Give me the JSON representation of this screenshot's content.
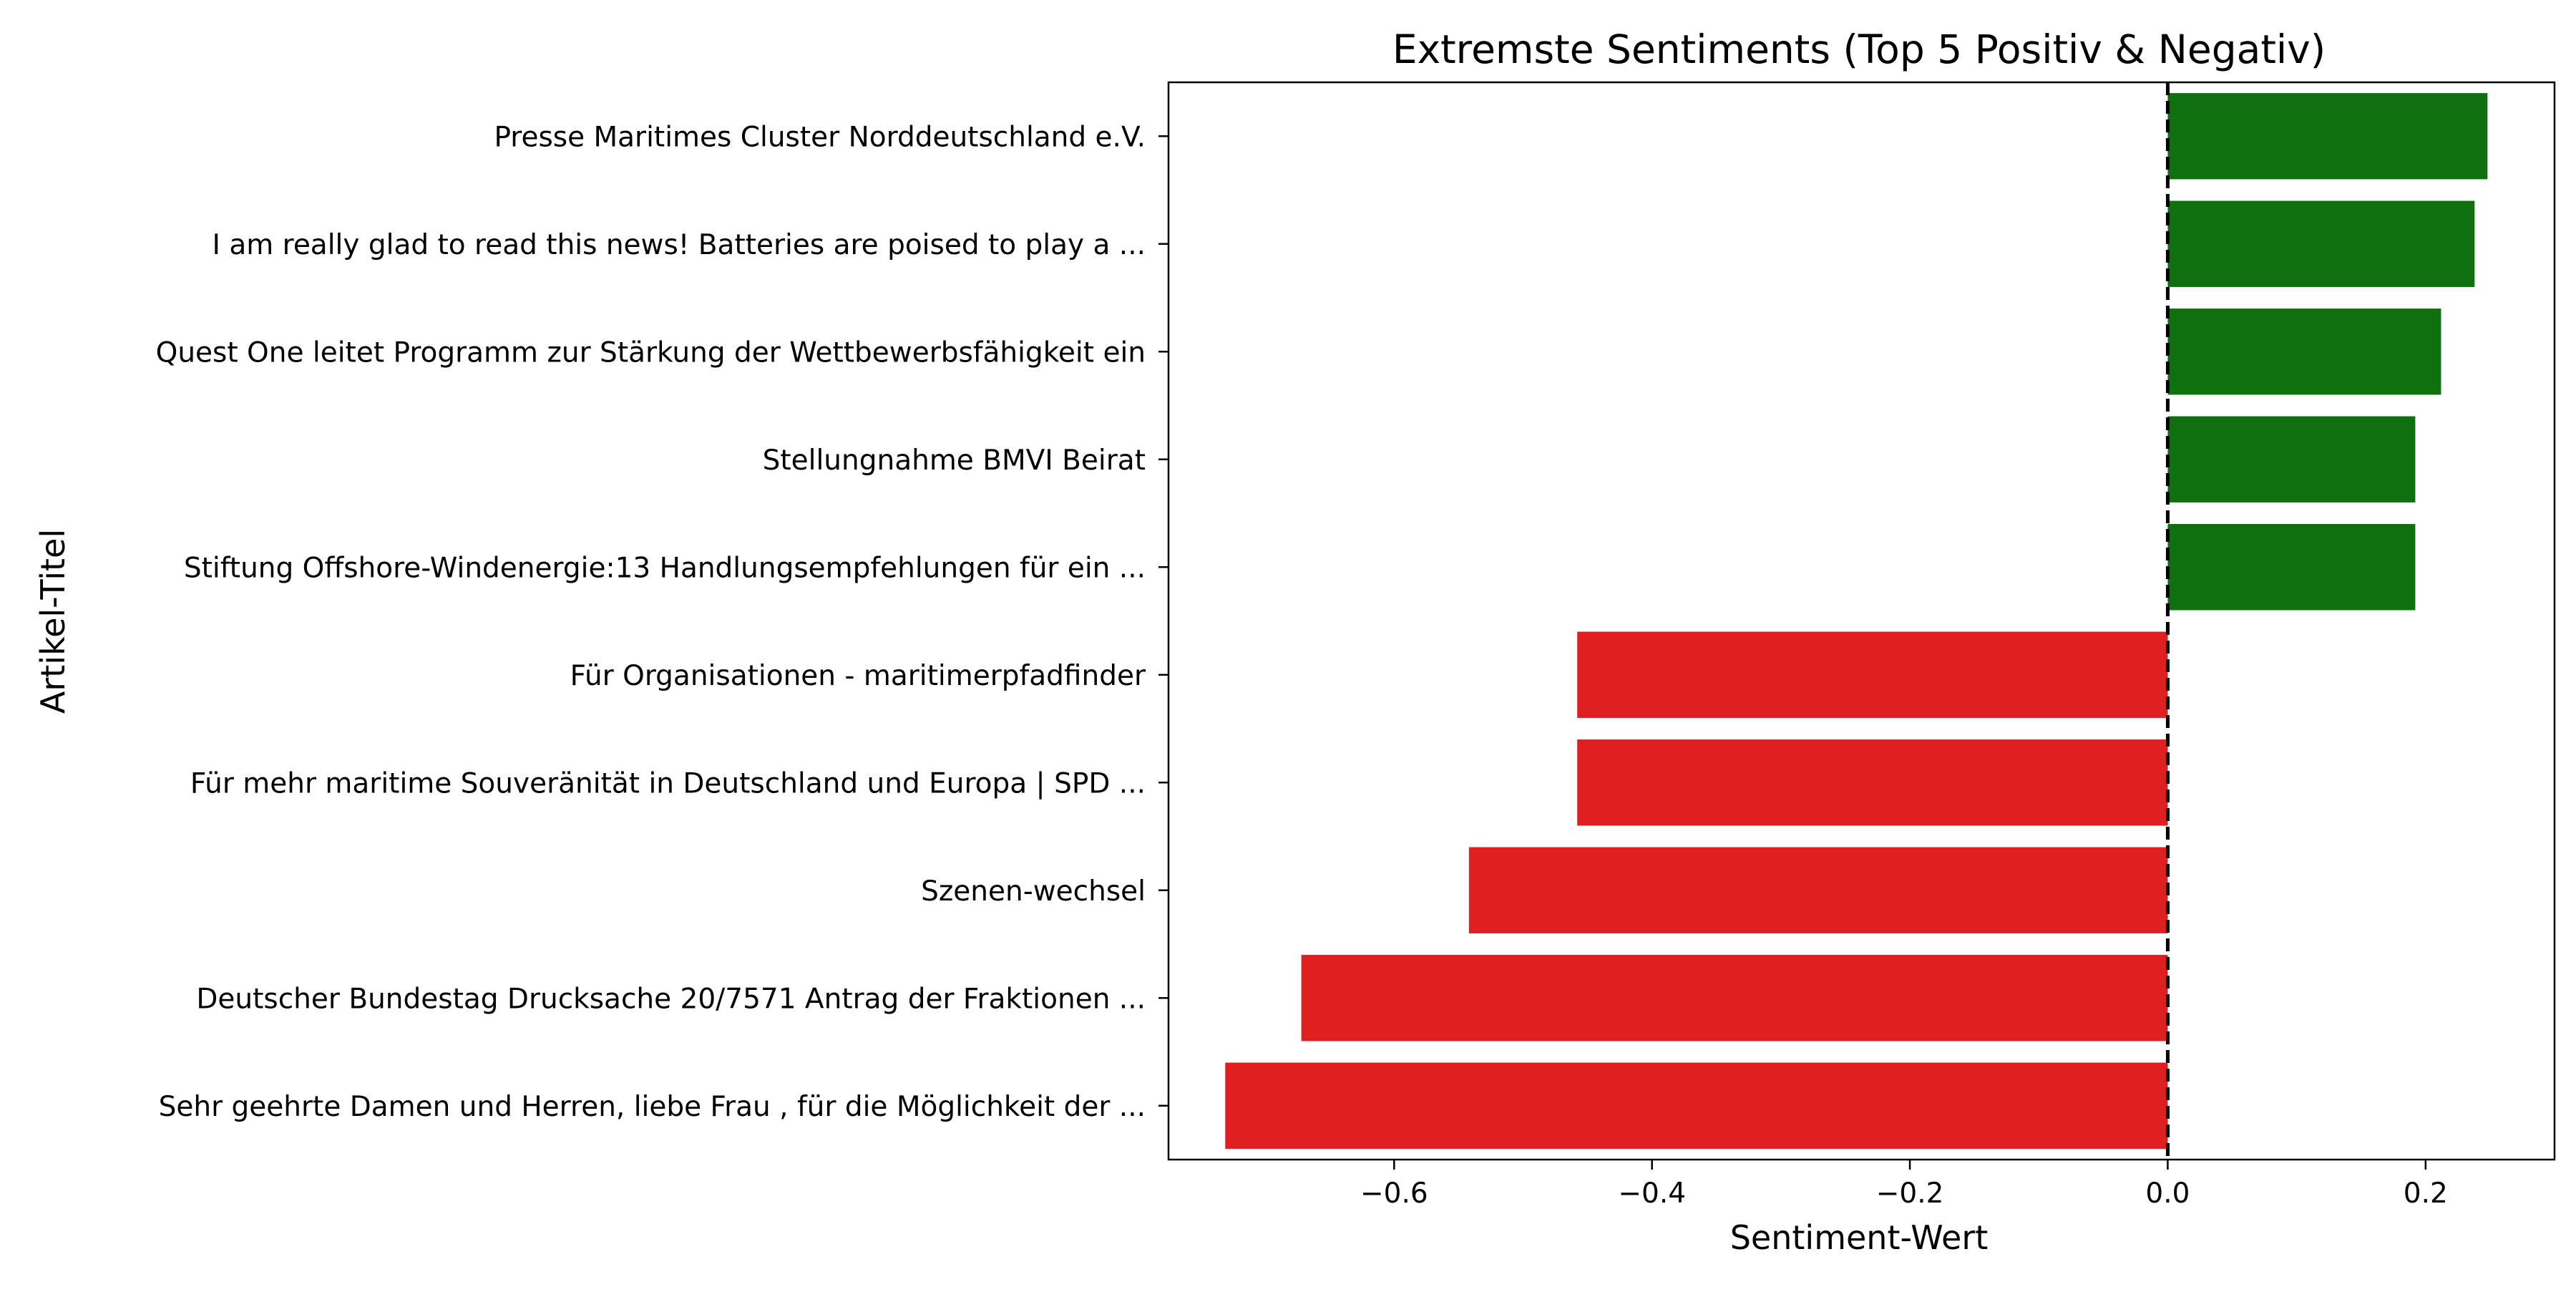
{
  "chart_data": {
    "type": "bar",
    "orientation": "horizontal",
    "title": "Extremste Sentiments (Top 5 Positiv & Negativ)",
    "xlabel": "Sentiment-Wert",
    "ylabel": "Artikel-Titel",
    "xlim": [
      -0.775,
      0.3
    ],
    "xticks": [
      -0.6,
      -0.4,
      -0.2,
      0.0,
      0.2
    ],
    "xtick_labels": [
      "−0.6",
      "−0.4",
      "−0.2",
      "0.0",
      "0.2"
    ],
    "grid": false,
    "reference_line": {
      "x": 0.0,
      "style": "dashed",
      "color": "#000000"
    },
    "categories": [
      "Presse Maritimes Cluster Norddeutschland e.V.",
      "I am really glad to read this news! Batteries are poised to play a ...",
      "Quest One leitet Programm zur Stärkung der Wettbewerbsfähigkeit ein",
      "Stellungnahme BMVI Beirat",
      "Stiftung Offshore-Windenergie:13 Handlungsempfehlungen für ein ...",
      "Für Organisationen - maritimerpfadfinder",
      "Für mehr maritime Souveränität in Deutschland und Europa | SPD ...",
      "Szenen-wechsel",
      "Deutscher Bundestag Drucksache 20/7571 Antrag der Fraktionen ...",
      "Sehr geehrte Damen und Herren, liebe Frau , für die Möglichkeit der ..."
    ],
    "values": [
      0.248,
      0.238,
      0.212,
      0.192,
      0.192,
      -0.458,
      -0.458,
      -0.542,
      -0.672,
      -0.731
    ],
    "colors": {
      "positive": "#107010",
      "negative": "#e02020"
    }
  }
}
